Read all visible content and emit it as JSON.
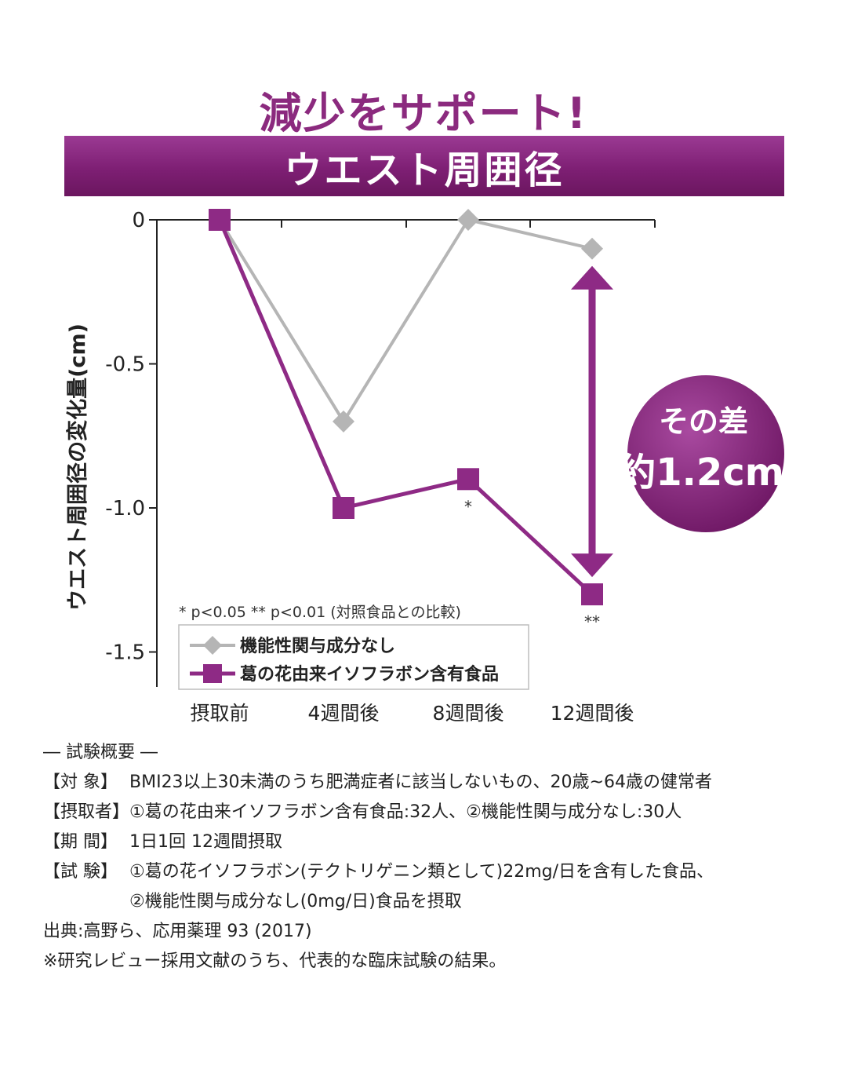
{
  "header": {
    "headline": "減少をサポート!",
    "banner": "ウエスト周囲径"
  },
  "colors": {
    "accent": "#8b2a7e",
    "control": "#b5b5b5",
    "test": "#8e2a85"
  },
  "chart_data": {
    "type": "line",
    "ylabel": "ウエスト周囲径の変化量(cm)",
    "ylim": [
      -1.5,
      0
    ],
    "yticks": [
      0,
      -0.5,
      -1.0,
      -1.5
    ],
    "ytick_labels": [
      "0",
      "-0.5",
      "-1.0",
      "-1.5"
    ],
    "categories": [
      "摂取前",
      "4週間後",
      "8週間後",
      "12週間後"
    ],
    "series": [
      {
        "name": "機能性関与成分なし",
        "marker": "diamond",
        "color": "#b5b5b5",
        "values": [
          0,
          -0.7,
          0,
          -0.1
        ]
      },
      {
        "name": "葛の花由来イソフラボン含有食品",
        "marker": "square",
        "color": "#8e2a85",
        "values": [
          0,
          -1.0,
          -0.9,
          -1.3
        ]
      }
    ],
    "significance": [
      "",
      "",
      "*",
      "**"
    ],
    "significance_note": "* p<0.05 ** p<0.01 (対照食品との比較)",
    "legend_position": "bottom-left",
    "annotation": {
      "line1": "その差",
      "line2": "約1.2cm"
    }
  },
  "notes": {
    "title": "― 試験概要 ―",
    "rows": [
      {
        "label": "【対 象】",
        "text": "BMI23以上30未満のうち肥満症者に該当しないもの、20歳~64歳の健常者"
      },
      {
        "label": "【摂取者】",
        "text": "①葛の花由来イソフラボン含有食品:32人、②機能性関与成分なし:30人"
      },
      {
        "label": "【期 間】",
        "text": "1日1回 12週間摂取"
      },
      {
        "label": "【試 験】",
        "text": "①葛の花イソフラボン(テクトリゲニン類として)22mg/日を含有した食品、"
      }
    ],
    "continuation": "②機能性関与成分なし(0mg/日)食品を摂取",
    "source": "出典:高野ら、応用薬理 93 (2017)",
    "footnote": "※研究レビュー採用文献のうち、代表的な臨床試験の結果。"
  }
}
